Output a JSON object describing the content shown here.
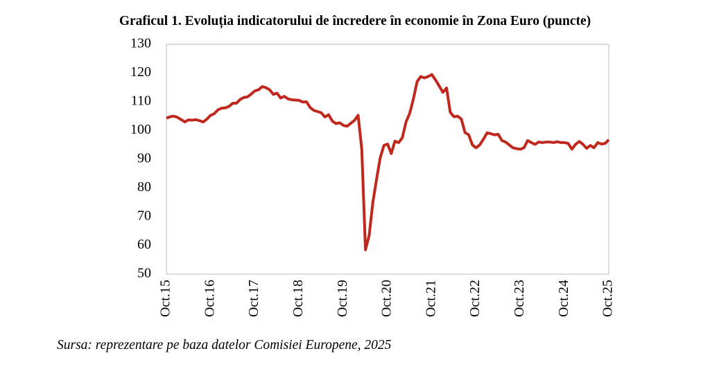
{
  "chart_data": {
    "type": "line",
    "title": "Graficul 1. Evoluția indicatorului de încredere în economie în Zona Euro (puncte)",
    "source": "Sursa: reprezentare pe baza datelor Comisiei Europene, 2025",
    "categories": [
      "Oct.15",
      null,
      null,
      null,
      null,
      null,
      null,
      null,
      null,
      null,
      null,
      null,
      "Oct.16",
      null,
      null,
      null,
      null,
      null,
      null,
      null,
      null,
      null,
      null,
      null,
      "Oct.17",
      null,
      null,
      null,
      null,
      null,
      null,
      null,
      null,
      null,
      null,
      null,
      "Oct.18",
      null,
      null,
      null,
      null,
      null,
      null,
      null,
      null,
      null,
      null,
      null,
      "Oct.19",
      null,
      null,
      null,
      null,
      null,
      null,
      null,
      null,
      null,
      null,
      null,
      "Oct.20",
      null,
      null,
      null,
      null,
      null,
      null,
      null,
      null,
      null,
      null,
      null,
      "Oct.21",
      null,
      null,
      null,
      null,
      null,
      null,
      null,
      null,
      null,
      null,
      null,
      "Oct.22",
      null,
      null,
      null,
      null,
      null,
      null,
      null,
      null,
      null,
      null,
      null,
      "Oct.23",
      null,
      null,
      null,
      null,
      null,
      null,
      null,
      null,
      null,
      null,
      null,
      "Oct.24",
      null,
      null,
      null,
      null,
      null,
      null,
      null,
      null,
      null,
      null,
      null,
      "Oct.25"
    ],
    "values": [
      104.3,
      104.8,
      105.0,
      104.6,
      103.8,
      103.0,
      103.7,
      103.6,
      103.8,
      103.4,
      103.0,
      104.0,
      105.3,
      105.9,
      107.2,
      107.8,
      107.9,
      108.4,
      109.5,
      109.5,
      110.8,
      111.5,
      111.7,
      112.7,
      113.8,
      114.2,
      115.3,
      114.9,
      114.2,
      112.6,
      113.0,
      111.3,
      111.9,
      111.0,
      110.7,
      110.6,
      110.5,
      109.9,
      110.0,
      108.0,
      107.0,
      106.6,
      106.2,
      104.7,
      105.5,
      103.3,
      102.4,
      102.7,
      101.8,
      101.5,
      102.5,
      103.5,
      105.3,
      93.5,
      58.5,
      63.5,
      75.0,
      83.0,
      90.5,
      94.8,
      95.3,
      92.0,
      96.3,
      95.8,
      97.5,
      103.0,
      106.0,
      111.0,
      117.0,
      118.8,
      118.3,
      118.8,
      119.5,
      117.6,
      115.5,
      113.3,
      114.8,
      106.3,
      104.8,
      105.0,
      104.0,
      99.3,
      98.5,
      95.0,
      94.0,
      95.0,
      97.0,
      99.2,
      98.9,
      98.5,
      98.7,
      96.5,
      96.0,
      95.0,
      94.0,
      93.7,
      93.5,
      94.0,
      96.5,
      95.8,
      95.2,
      96.0,
      95.8,
      96.0,
      96.0,
      95.8,
      96.1,
      95.8,
      95.8,
      95.5,
      93.5,
      95.2,
      96.2,
      95.2,
      93.8,
      94.8,
      94.0,
      95.8,
      95.3,
      95.5,
      96.8
    ],
    "color": "#c0281e",
    "ylim": [
      50,
      130
    ],
    "yticks": [
      50,
      60,
      70,
      80,
      90,
      100,
      110,
      120,
      130
    ],
    "grid": false
  }
}
